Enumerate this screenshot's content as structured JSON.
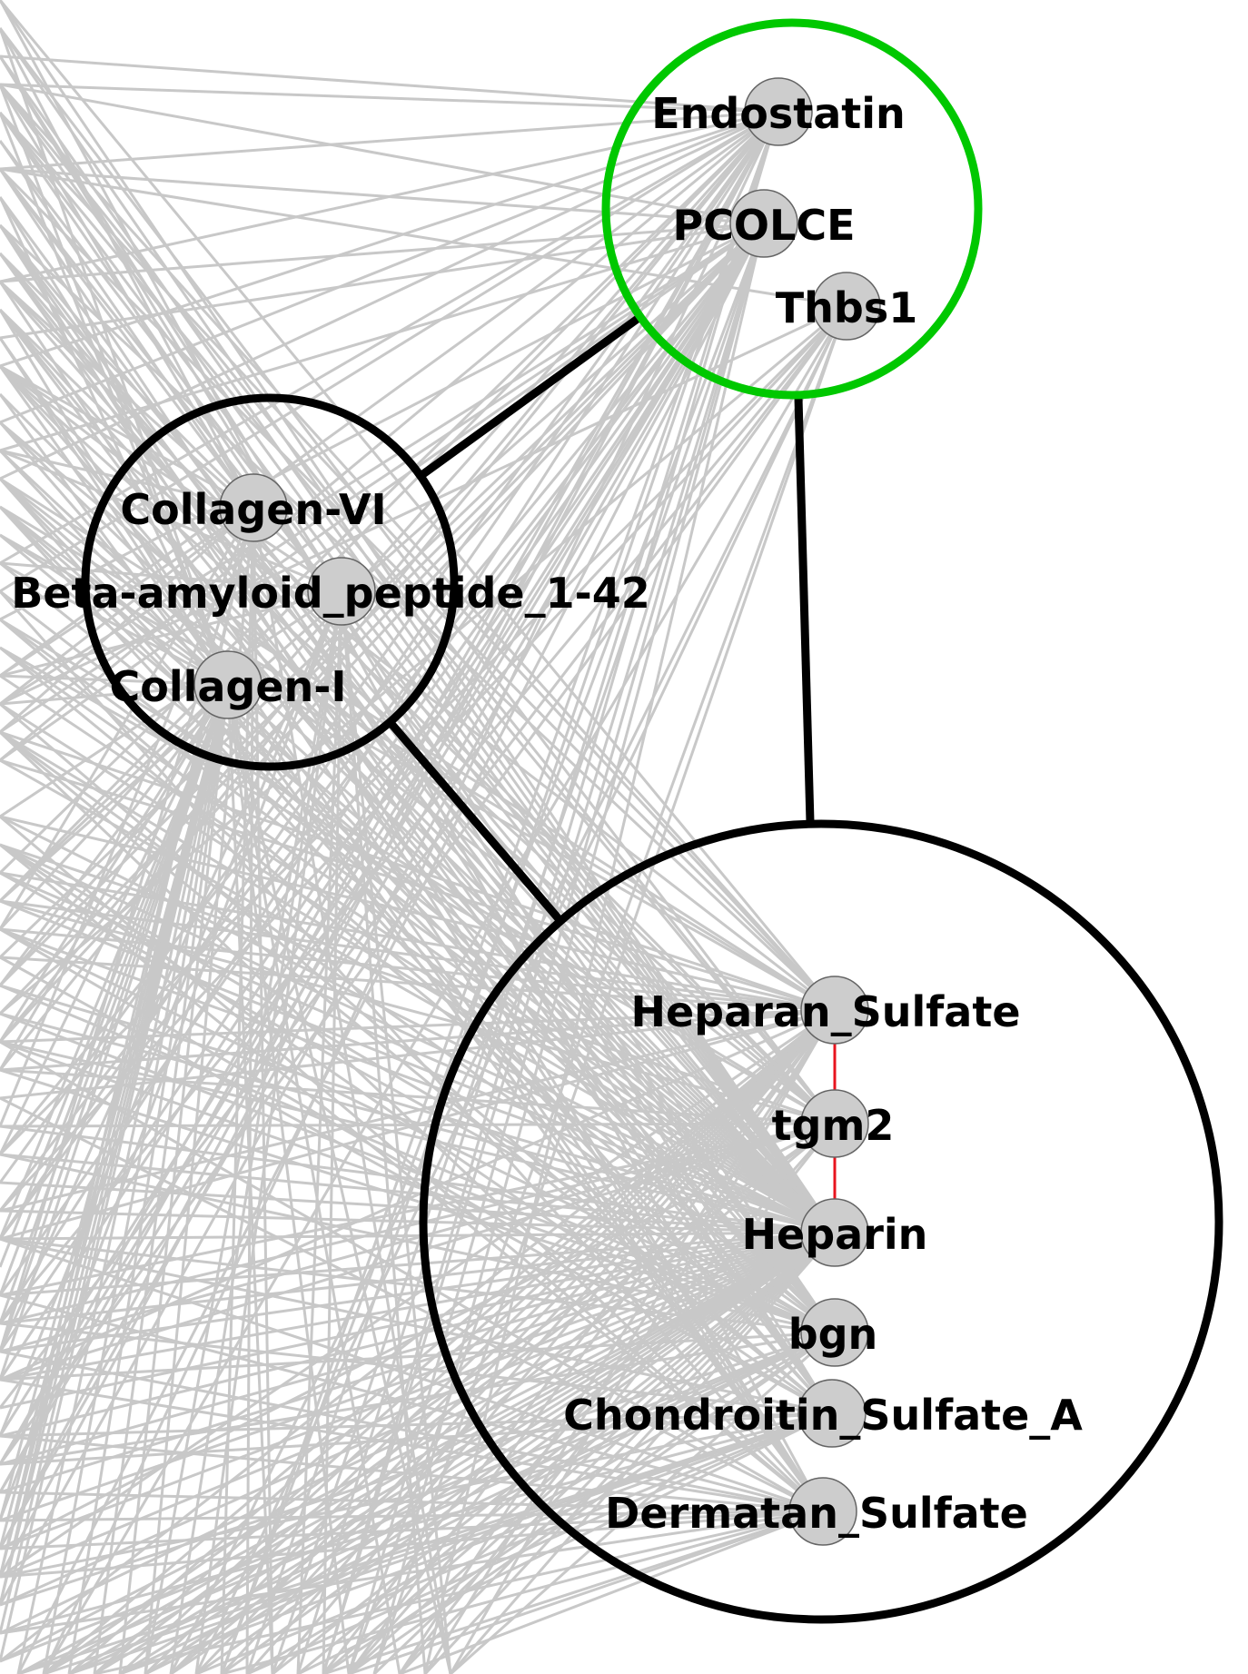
{
  "colors": {
    "background": "#ffffff",
    "background_edge": "#c8c8c8",
    "meta_edge": "#000000",
    "highlight_cluster": "#00c800",
    "cluster_outline": "#000000",
    "node_fill": "#cdcdcd",
    "node_stroke": "#646464",
    "red_edge": "#e8141e"
  },
  "clusters": [
    {
      "id": "cluster-top",
      "highlighted": true,
      "nodes": [
        {
          "id": "endostatin",
          "label": "Endostatin"
        },
        {
          "id": "pcolce",
          "label": "PCOLCE"
        },
        {
          "id": "thbs1",
          "label": "Thbs1"
        }
      ]
    },
    {
      "id": "cluster-left",
      "highlighted": false,
      "nodes": [
        {
          "id": "collagen-vi",
          "label": "Collagen-VI"
        },
        {
          "id": "beta-amyloid",
          "label": "Beta-amyloid_peptide_1-42"
        },
        {
          "id": "collagen-i",
          "label": "Collagen-I"
        }
      ]
    },
    {
      "id": "cluster-bottom",
      "highlighted": false,
      "nodes": [
        {
          "id": "heparan-sulfate",
          "label": "Heparan_Sulfate"
        },
        {
          "id": "tgm2",
          "label": "tgm2"
        },
        {
          "id": "heparin",
          "label": "Heparin"
        },
        {
          "id": "bgn",
          "label": "bgn"
        },
        {
          "id": "chondroitin-sulfate-a",
          "label": "Chondroitin_Sulfate_A"
        },
        {
          "id": "dermatan-sulfate",
          "label": "Dermatan_Sulfate"
        }
      ]
    }
  ],
  "cluster_links": [
    {
      "from": "cluster-top",
      "to": "cluster-left"
    },
    {
      "from": "cluster-top",
      "to": "cluster-bottom"
    },
    {
      "from": "cluster-left",
      "to": "cluster-bottom"
    }
  ],
  "red_links": [
    {
      "from": "heparan-sulfate",
      "to": "tgm2"
    },
    {
      "from": "tgm2",
      "to": "heparin"
    }
  ]
}
